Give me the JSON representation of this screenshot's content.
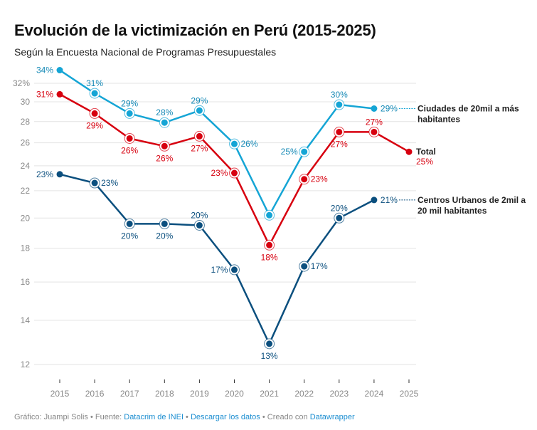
{
  "header": {
    "title": "Evolución de la victimización en Perú (2015-2025)",
    "subtitle": "Según la Encuesta Nacional de Programas Presupuestales"
  },
  "footer": {
    "credit_prefix": "Gráfico: Juampi Solis • Fuente: ",
    "source_link": "Datacrim de INEI",
    "sep1": " • ",
    "download_link": "Descargar los datos",
    "sep2": " • Creado con ",
    "tool_link": "Datawrapper"
  },
  "chart_data": {
    "type": "line",
    "title": "Evolución de la victimización en Perú (2015-2025)",
    "subtitle": "Según la Encuesta Nacional de Programas Presupuestales",
    "xlabel": "",
    "ylabel": "",
    "y_scale": "log",
    "ylim": [
      11.3,
      34
    ],
    "y_ticks": [
      12,
      14,
      16,
      18,
      20,
      22,
      24,
      26,
      28,
      30,
      32
    ],
    "y_tick_labels": [
      "12",
      "14",
      "16",
      "18",
      "20",
      "22",
      "24",
      "26",
      "28",
      "30",
      "32%"
    ],
    "grid": true,
    "x": [
      "2015",
      "2016",
      "2017",
      "2018",
      "2019",
      "2020",
      "2021",
      "2022",
      "2023",
      "2024",
      "2025"
    ],
    "series": [
      {
        "name": "Ciudades de 20mil a más habitantes",
        "legend_lines": [
          "Ciudades de 20mil a más",
          "habitantes"
        ],
        "color": "#15a5d5",
        "label_color": "#1388b5",
        "values": [
          33.5,
          30.9,
          28.8,
          27.9,
          29.1,
          25.9,
          20.2,
          25.2,
          29.7,
          29.3,
          null
        ],
        "labels": [
          "34%",
          "31%",
          "29%",
          "28%",
          "29%",
          "26%",
          "",
          "25%",
          "30%",
          "29%",
          ""
        ],
        "label_pos": [
          "left",
          "above",
          "above",
          "above",
          "above",
          "right",
          "none",
          "left",
          "above",
          "right",
          "none"
        ]
      },
      {
        "name": "Total",
        "legend_lines": [
          "Total"
        ],
        "color": "#d7000f",
        "label_color": "#d7000f",
        "values": [
          30.8,
          28.8,
          26.4,
          25.7,
          26.6,
          23.4,
          18.2,
          22.9,
          27.0,
          27.0,
          25.2
        ],
        "labels": [
          "31%",
          "29%",
          "26%",
          "26%",
          "27%",
          "23%",
          "18%",
          "23%",
          "27%",
          "27%",
          "25%"
        ],
        "label_pos": [
          "left",
          "below",
          "below",
          "below",
          "below",
          "left",
          "below",
          "right",
          "below",
          "above",
          "legend"
        ]
      },
      {
        "name": "Centros Urbanos de 2mil a 20 mil habitantes",
        "legend_lines": [
          "Centros Urbanos de 2mil a",
          "20 mil habitantes"
        ],
        "color": "#0b4f7e",
        "label_color": "#0b4f7e",
        "values": [
          23.3,
          22.6,
          19.6,
          19.6,
          19.5,
          16.7,
          12.9,
          16.9,
          20.0,
          21.3,
          null
        ],
        "labels": [
          "23%",
          "23%",
          "20%",
          "20%",
          "20%",
          "17%",
          "13%",
          "17%",
          "20%",
          "21%",
          ""
        ],
        "label_pos": [
          "left",
          "right",
          "below",
          "below",
          "above",
          "left",
          "below",
          "right",
          "above",
          "right",
          "none"
        ]
      }
    ]
  }
}
